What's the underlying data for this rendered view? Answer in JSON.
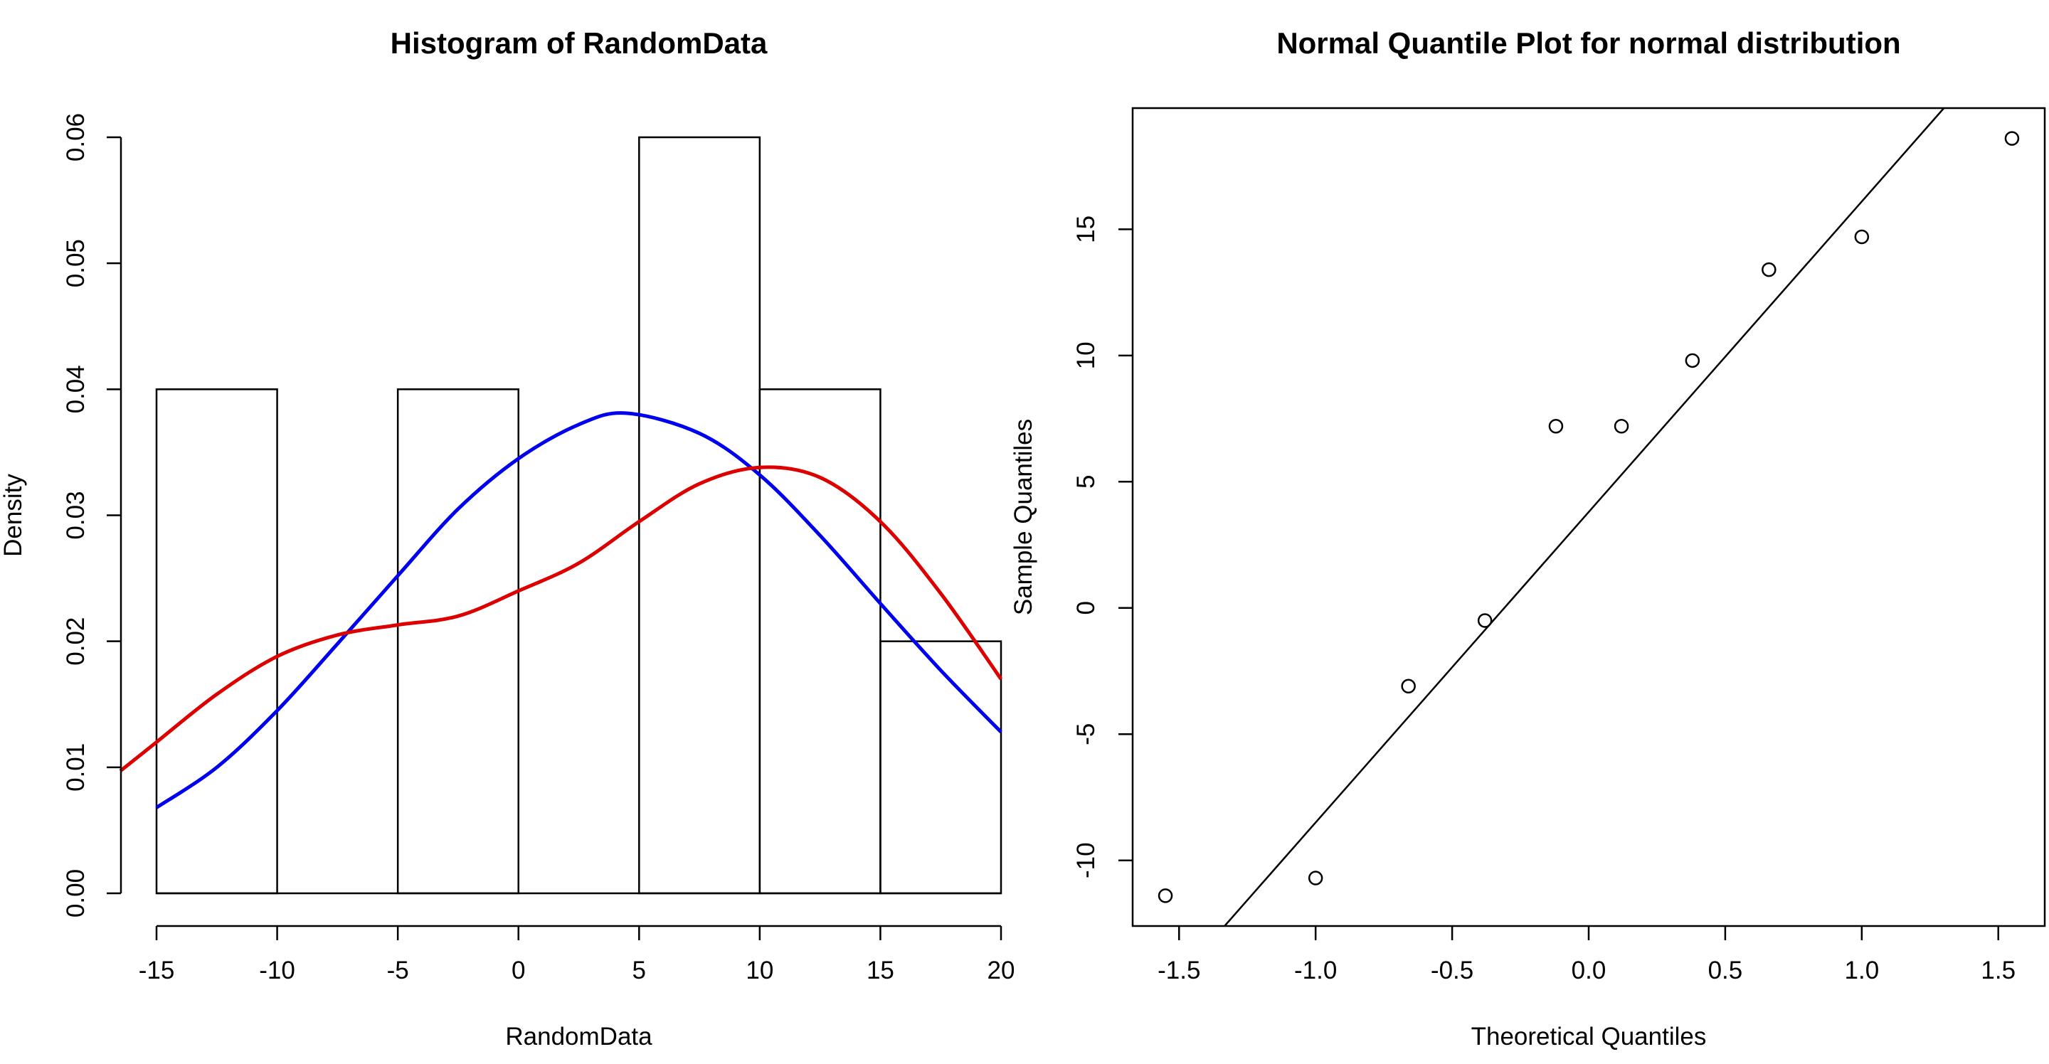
{
  "chart_data": [
    {
      "type": "histogram",
      "title": "Histogram of RandomData",
      "xlabel": "RandomData",
      "ylabel": "Density",
      "xlim": [
        -15,
        20
      ],
      "ylim": [
        0,
        0.06
      ],
      "x_ticks": [
        -15,
        -10,
        -5,
        0,
        5,
        10,
        15,
        20
      ],
      "x_tick_labels": [
        "-15",
        "-10",
        "-5",
        "0",
        "5",
        "10",
        "15",
        "20"
      ],
      "y_ticks": [
        0,
        0.01,
        0.02,
        0.03,
        0.04,
        0.05,
        0.06
      ],
      "y_tick_labels": [
        "0.00",
        "0.01",
        "0.02",
        "0.03",
        "0.04",
        "0.05",
        "0.06"
      ],
      "grid": false,
      "bins": [
        {
          "from": -15,
          "to": -10,
          "density": 0.04
        },
        {
          "from": -10,
          "to": -5,
          "density": 0.0
        },
        {
          "from": -5,
          "to": 0,
          "density": 0.04
        },
        {
          "from": 0,
          "to": 5,
          "density": 0.0
        },
        {
          "from": 5,
          "to": 10,
          "density": 0.06
        },
        {
          "from": 10,
          "to": 15,
          "density": 0.04
        },
        {
          "from": 15,
          "to": 20,
          "density": 0.02
        }
      ],
      "series": [
        {
          "type": "line",
          "color": "#0000ee",
          "x": [
            -15,
            -12.5,
            -10,
            -7.5,
            -5,
            -2.5,
            0,
            2.5,
            4.5,
            7.5,
            10,
            12.5,
            15,
            17.5,
            20
          ],
          "y": [
            0.0068,
            0.01,
            0.0145,
            0.0198,
            0.0252,
            0.0305,
            0.0345,
            0.0372,
            0.0381,
            0.0365,
            0.0332,
            0.0284,
            0.023,
            0.0177,
            0.0128
          ]
        },
        {
          "type": "line",
          "color": "#dd0000",
          "x": [
            -16.5,
            -15,
            -12.5,
            -10,
            -7.5,
            -5,
            -2.5,
            0,
            2.5,
            5,
            7.5,
            10,
            12.5,
            15,
            17.5,
            20
          ],
          "y": [
            0.0097,
            0.012,
            0.0158,
            0.0188,
            0.0205,
            0.0213,
            0.022,
            0.024,
            0.0262,
            0.0295,
            0.0325,
            0.0338,
            0.033,
            0.0295,
            0.0238,
            0.017
          ]
        }
      ]
    },
    {
      "type": "scatter",
      "title": "Normal Quantile Plot for normal distribution",
      "xlabel": "Theoretical Quantiles",
      "ylabel": "Sample Quantiles",
      "xlim": [
        -1.67,
        1.67
      ],
      "ylim": [
        -12.6,
        19.8
      ],
      "x_ticks": [
        -1.5,
        -1.0,
        -0.5,
        0.0,
        0.5,
        1.0,
        1.5
      ],
      "x_tick_labels": [
        "-1.5",
        "-1.0",
        "-0.5",
        "0.0",
        "0.5",
        "1.0",
        "1.5"
      ],
      "y_ticks": [
        -10,
        -5,
        0,
        5,
        10,
        15
      ],
      "y_tick_labels": [
        "-10",
        "-5",
        "0",
        "5",
        "10",
        "15"
      ],
      "grid": false,
      "points": {
        "x": [
          -1.55,
          -1.0,
          -0.66,
          -0.38,
          -0.12,
          0.12,
          0.38,
          0.66,
          1.0,
          1.55
        ],
        "y": [
          -11.4,
          -10.7,
          -3.1,
          -0.5,
          7.2,
          7.2,
          9.8,
          13.4,
          14.7,
          18.6
        ]
      },
      "reference_line": {
        "intercept": 3.8,
        "slope": 12.3
      }
    }
  ]
}
